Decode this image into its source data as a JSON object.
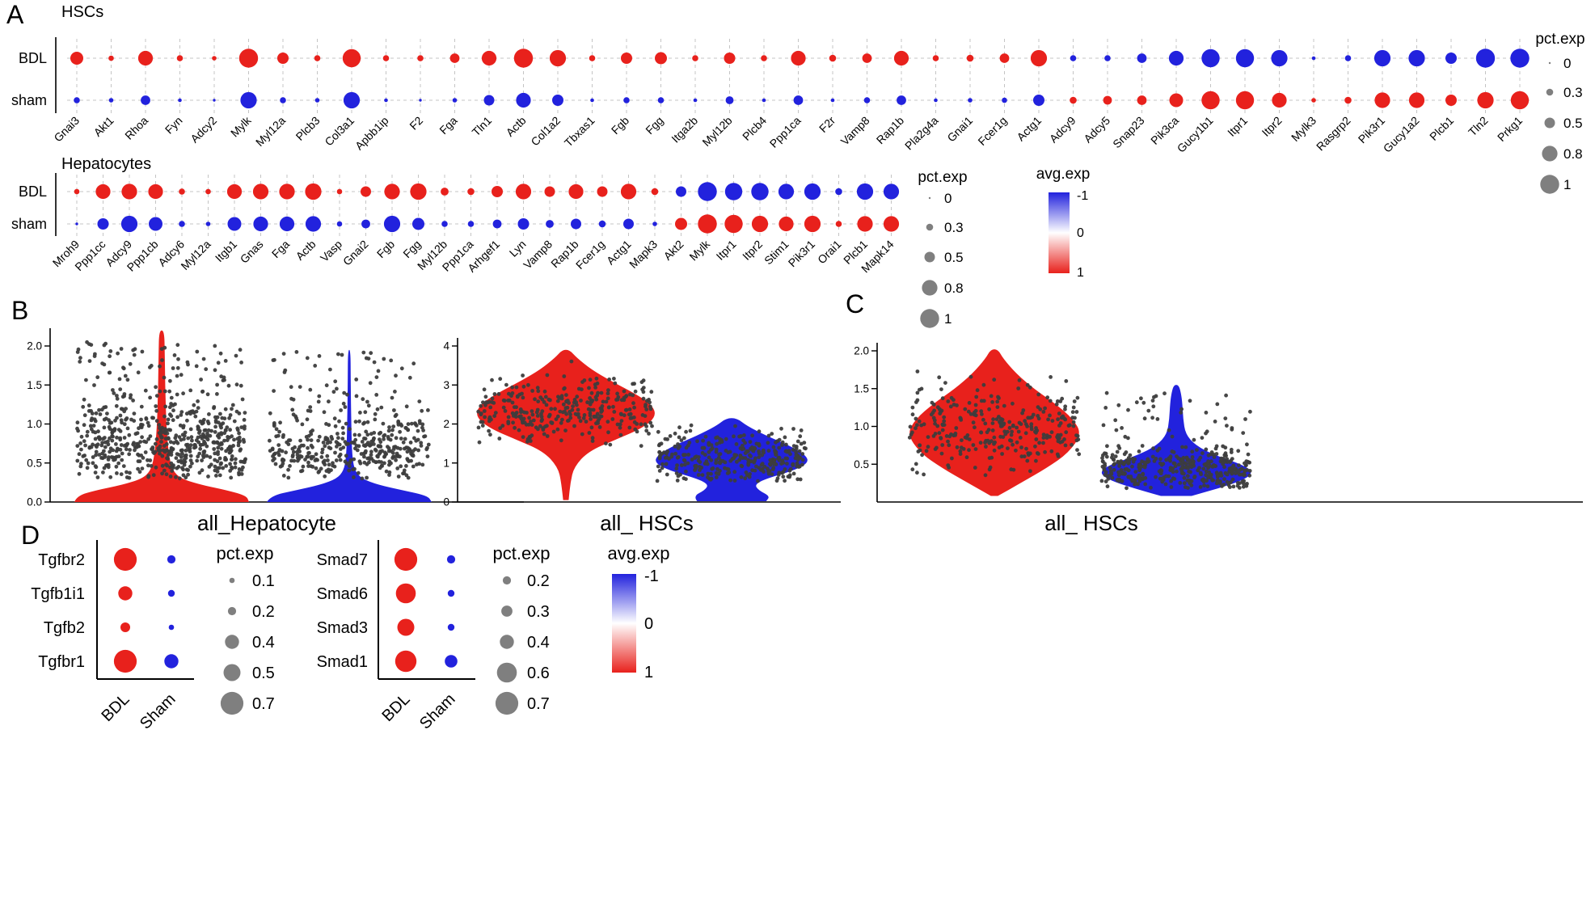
{
  "colors": {
    "red": "#e8211c",
    "blue": "#2222dd",
    "grey_dot": "#7f7f7f",
    "point": "#3d3d3d",
    "grid": "#c4c4c4",
    "axis": "#000000"
  },
  "panels": {
    "a": "A",
    "b": "B",
    "c": "C",
    "d": "D"
  },
  "titles": {
    "hsc": "HSCs",
    "hep": "Hepatocytes",
    "violin_hep": "all_Hepatocyte",
    "violin_hsc_b": "all_ HSCs",
    "violin_hsc_c": "all_ HSCs",
    "pct_exp": "pct.exp",
    "avg_exp": "avg.exp"
  },
  "colorbar": {
    "title": "avg.exp",
    "ticks": [
      "-1",
      "0",
      "1"
    ]
  },
  "chart_data": [
    {
      "id": "hsc_dotplot",
      "type": "dotplot_h",
      "title": "HSCs",
      "rows": [
        "BDL",
        "sham"
      ],
      "genes": [
        "Gnai3",
        "Akt1",
        "Rhoa",
        "Fyn",
        "Adcy2",
        "Mylk",
        "Myl12a",
        "Plcb3",
        "Col3a1",
        "Apbb1ip",
        "F2",
        "Fga",
        "Tln1",
        "Actb",
        "Col1a2",
        "Tbxas1",
        "Fgb",
        "Fgg",
        "Itga2b",
        "Myl12b",
        "Plcb4",
        "Ppp1ca",
        "F2r",
        "Vamp8",
        "Rap1b",
        "Pla2g4a",
        "Gnai1",
        "Fcer1g",
        "Actg1",
        "Adcy9",
        "Adcy5",
        "Snap23",
        "Pik3ca",
        "Gucy1b1",
        "Itpr1",
        "Itpr2",
        "Mylk3",
        "Rasgrp2",
        "Pik3r1",
        "Gucy1a2",
        "Plcb1",
        "Tln2",
        "Prkg1"
      ],
      "bdl_pct": [
        0.65,
        0.2,
        0.75,
        0.25,
        0.15,
        1,
        0.55,
        0.25,
        0.95,
        0.25,
        0.25,
        0.45,
        0.75,
        1,
        0.85,
        0.25,
        0.55,
        0.6,
        0.25,
        0.55,
        0.25,
        0.75,
        0.3,
        0.45,
        0.75,
        0.25,
        0.3,
        0.45,
        0.85,
        0.25,
        0.25,
        0.45,
        0.75,
        0.95,
        0.95,
        0.85,
        0.1,
        0.25,
        0.85,
        0.85,
        0.55,
        1,
        1
      ],
      "sham_pct": [
        0.25,
        0.15,
        0.45,
        0.1,
        0.05,
        0.85,
        0.25,
        0.15,
        0.85,
        0.1,
        0.05,
        0.15,
        0.5,
        0.75,
        0.55,
        0.1,
        0.25,
        0.25,
        0.1,
        0.35,
        0.1,
        0.45,
        0.1,
        0.25,
        0.45,
        0.1,
        0.15,
        0.2,
        0.55,
        0.3,
        0.4,
        0.45,
        0.7,
        0.95,
        0.95,
        0.75,
        0.15,
        0.3,
        0.8,
        0.8,
        0.55,
        0.85,
        0.95
      ],
      "n_bdl_up": 29,
      "pct_legend": {
        "title": "pct.exp",
        "values": [
          0,
          0.3,
          0.5,
          0.8,
          1
        ],
        "labels": [
          "0",
          "0.3",
          "0.5",
          "0.8",
          "1"
        ]
      }
    },
    {
      "id": "hep_dotplot",
      "type": "dotplot_h",
      "title": "Hepatocytes",
      "rows": [
        "BDL",
        "sham"
      ],
      "genes": [
        "Mroh9",
        "Ppp1cc",
        "Adcy9",
        "Ppp1cb",
        "Adcy6",
        "Myl12a",
        "Itgb1",
        "Gnas",
        "Fga",
        "Actb",
        "Vasp",
        "Gnai2",
        "Fgb",
        "Fgg",
        "Myl12b",
        "Ppp1ca",
        "Arhgef1",
        "Lyn",
        "Vamp8",
        "Rap1b",
        "Fcer1g",
        "Actg1",
        "Mapk3",
        "Akt2",
        "Mylk",
        "Itpr1",
        "Itpr2",
        "Stim1",
        "Pik3r1",
        "Orai1",
        "Plcb1",
        "Mapk14"
      ],
      "bdl_pct": [
        0.2,
        0.75,
        0.8,
        0.75,
        0.25,
        0.2,
        0.75,
        0.8,
        0.8,
        0.85,
        0.2,
        0.5,
        0.8,
        0.85,
        0.35,
        0.3,
        0.55,
        0.8,
        0.5,
        0.75,
        0.5,
        0.8,
        0.3,
        0.5,
        1,
        0.9,
        0.9,
        0.8,
        0.85,
        0.3,
        0.85,
        0.8
      ],
      "sham_pct": [
        0.05,
        0.55,
        0.85,
        0.7,
        0.25,
        0.15,
        0.7,
        0.75,
        0.75,
        0.8,
        0.2,
        0.4,
        0.85,
        0.6,
        0.25,
        0.25,
        0.4,
        0.55,
        0.35,
        0.5,
        0.3,
        0.5,
        0.15,
        0.6,
        1,
        0.95,
        0.85,
        0.75,
        0.85,
        0.25,
        0.8,
        0.8
      ],
      "n_bdl_up": 23,
      "pct_legend": {
        "title": "pct.exp",
        "values": [
          0,
          0.3,
          0.5,
          0.8,
          1
        ],
        "labels": [
          "0",
          "0.3",
          "0.5",
          "0.8",
          "1"
        ]
      }
    },
    {
      "id": "violin_hep",
      "type": "violin",
      "xlabel": "all_Hepatocyte",
      "yticks": [
        [
          0,
          "0.0"
        ],
        [
          0.5,
          "0.5"
        ],
        [
          1,
          "1.0"
        ],
        [
          1.5,
          "1.5"
        ],
        [
          2,
          "2.0"
        ]
      ],
      "groups": [
        {
          "name": "BDL",
          "color": "red",
          "profile": [
            [
              0,
              1
            ],
            [
              0.08,
              0.97
            ],
            [
              0.15,
              0.75
            ],
            [
              0.22,
              0.45
            ],
            [
              0.3,
              0.22
            ],
            [
              0.4,
              0.13
            ],
            [
              0.55,
              0.09
            ],
            [
              0.8,
              0.065
            ],
            [
              1.1,
              0.05
            ],
            [
              1.5,
              0.04
            ],
            [
              1.9,
              0.035
            ],
            [
              2.2,
              0.03
            ]
          ],
          "points": {
            "n": 650,
            "g_mean": 0.7,
            "g_sd": 0.25,
            "g_frac": 0.8,
            "u_min": 1.0,
            "u_max": 2.05,
            "min": 0.3,
            "max": 2.1
          }
        },
        {
          "name": "sham",
          "color": "blue",
          "profile": [
            [
              0,
              1
            ],
            [
              0.08,
              0.95
            ],
            [
              0.15,
              0.65
            ],
            [
              0.22,
              0.35
            ],
            [
              0.3,
              0.15
            ],
            [
              0.4,
              0.07
            ],
            [
              0.55,
              0.04
            ],
            [
              0.8,
              0.028
            ],
            [
              1.2,
              0.022
            ],
            [
              1.6,
              0.018
            ],
            [
              1.95,
              0.015
            ]
          ],
          "points": {
            "n": 430,
            "g_mean": 0.65,
            "g_sd": 0.22,
            "g_frac": 0.82,
            "u_min": 0.95,
            "u_max": 1.95,
            "min": 0.3,
            "max": 2.0
          }
        }
      ]
    },
    {
      "id": "violin_hsc_b",
      "type": "violin",
      "xlabel": "all_ HSCs",
      "yticks": [
        [
          0,
          "0"
        ],
        [
          1,
          "1"
        ],
        [
          2,
          "2"
        ],
        [
          3,
          "3"
        ],
        [
          4,
          "4"
        ]
      ],
      "groups": [
        {
          "name": "BDL",
          "color": "red",
          "profile": [
            [
              0.05,
              0.03
            ],
            [
              0.5,
              0.05
            ],
            [
              0.9,
              0.09
            ],
            [
              1.3,
              0.25
            ],
            [
              1.6,
              0.55
            ],
            [
              1.9,
              0.85
            ],
            [
              2.2,
              1
            ],
            [
              2.5,
              0.95
            ],
            [
              2.8,
              0.75
            ],
            [
              3.1,
              0.5
            ],
            [
              3.4,
              0.28
            ],
            [
              3.7,
              0.12
            ],
            [
              3.9,
              0.04
            ]
          ],
          "points": {
            "n": 320,
            "g_mean": 2.35,
            "g_sd": 0.4,
            "g_frac": 0.92,
            "u_min": 1.5,
            "u_max": 3.4,
            "min": 1.4,
            "max": 3.7
          }
        },
        {
          "name": "sham",
          "color": "blue",
          "profile": [
            [
              0.02,
              0.45
            ],
            [
              0.15,
              0.5
            ],
            [
              0.3,
              0.35
            ],
            [
              0.45,
              0.3
            ],
            [
              0.6,
              0.45
            ],
            [
              0.8,
              0.8
            ],
            [
              1,
              1
            ],
            [
              1.2,
              0.97
            ],
            [
              1.45,
              0.75
            ],
            [
              1.7,
              0.45
            ],
            [
              1.95,
              0.2
            ],
            [
              2.15,
              0.07
            ]
          ],
          "points": {
            "n": 320,
            "g_mean": 1.15,
            "g_sd": 0.32,
            "g_frac": 0.9,
            "u_min": 0.5,
            "u_max": 2.0,
            "min": 0.5,
            "max": 2.1
          }
        }
      ]
    },
    {
      "id": "violin_hsc_c",
      "type": "violin",
      "xlabel": "all_ HSCs",
      "yticks": [
        [
          0.5,
          "0.5"
        ],
        [
          1,
          "1.0"
        ],
        [
          1.5,
          "1.5"
        ],
        [
          2,
          "2.0"
        ]
      ],
      "groups": [
        {
          "name": "BDL",
          "color": "red",
          "profile": [
            [
              0.08,
              0.04
            ],
            [
              0.25,
              0.3
            ],
            [
              0.45,
              0.6
            ],
            [
              0.65,
              0.85
            ],
            [
              0.9,
              1
            ],
            [
              1.1,
              0.9
            ],
            [
              1.3,
              0.7
            ],
            [
              1.5,
              0.45
            ],
            [
              1.7,
              0.25
            ],
            [
              1.9,
              0.1
            ],
            [
              2.02,
              0.04
            ]
          ],
          "points": {
            "n": 300,
            "g_mean": 0.95,
            "g_sd": 0.3,
            "g_frac": 0.9,
            "u_min": 0.4,
            "u_max": 1.85,
            "min": 0.35,
            "max": 2.0
          }
        },
        {
          "name": "sham",
          "color": "blue",
          "profile": [
            [
              0.08,
              0.2
            ],
            [
              0.18,
              0.55
            ],
            [
              0.3,
              0.9
            ],
            [
              0.4,
              1
            ],
            [
              0.5,
              0.85
            ],
            [
              0.62,
              0.5
            ],
            [
              0.75,
              0.25
            ],
            [
              0.9,
              0.12
            ],
            [
              1.1,
              0.09
            ],
            [
              1.3,
              0.08
            ],
            [
              1.45,
              0.06
            ],
            [
              1.55,
              0.03
            ]
          ],
          "points": {
            "n": 400,
            "g_mean": 0.44,
            "g_sd": 0.14,
            "g_frac": 0.85,
            "u_min": 0.2,
            "u_max": 1.45,
            "min": 0.18,
            "max": 1.55
          }
        }
      ]
    },
    {
      "id": "tgf_dotplot",
      "type": "dotplot_v",
      "rows": [
        "Tgfbr2",
        "Tgfb1i1",
        "Tgfb2",
        "Tgfbr1"
      ],
      "cols": [
        "BDL",
        "Sham"
      ],
      "col_colors": [
        "red",
        "blue"
      ],
      "pct": [
        [
          0.7,
          0.2
        ],
        [
          0.4,
          0.15
        ],
        [
          0.25,
          0.1
        ],
        [
          0.7,
          0.4
        ]
      ],
      "pct_legend": {
        "title": "pct.exp",
        "values": [
          0.1,
          0.2,
          0.4,
          0.5,
          0.7
        ],
        "labels": [
          "0.1",
          "0.2",
          "0.4",
          "0.5",
          "0.7"
        ]
      }
    },
    {
      "id": "smad_dotplot",
      "type": "dotplot_v",
      "rows": [
        "Smad7",
        "Smad6",
        "Smad3",
        "Smad1"
      ],
      "cols": [
        "BDL",
        "Sham"
      ],
      "col_colors": [
        "red",
        "blue"
      ],
      "pct": [
        [
          0.7,
          0.2
        ],
        [
          0.6,
          0.15
        ],
        [
          0.5,
          0.15
        ],
        [
          0.65,
          0.35
        ]
      ],
      "pct_legend": {
        "title": "pct.exp",
        "values": [
          0.2,
          0.3,
          0.4,
          0.6,
          0.7
        ],
        "labels": [
          "0.2",
          "0.3",
          "0.4",
          "0.6",
          "0.7"
        ]
      }
    }
  ]
}
